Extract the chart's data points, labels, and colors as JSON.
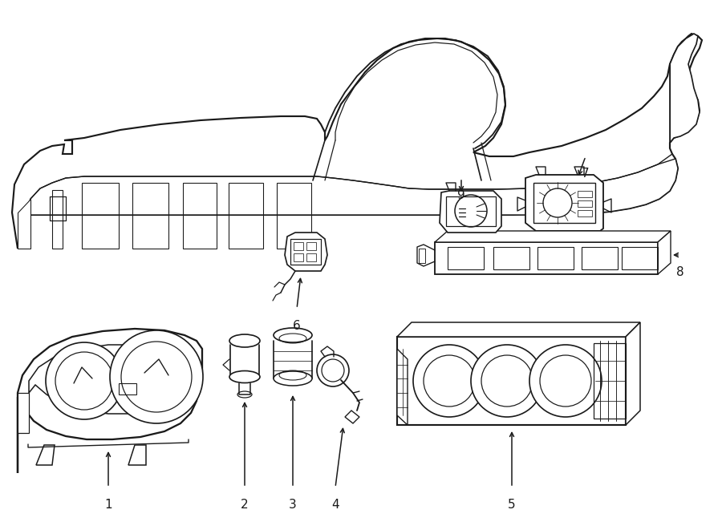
{
  "bg_color": "#ffffff",
  "line_color": "#1a1a1a",
  "lw": 1.1,
  "fig_width": 9.0,
  "fig_height": 6.61,
  "dpi": 100
}
